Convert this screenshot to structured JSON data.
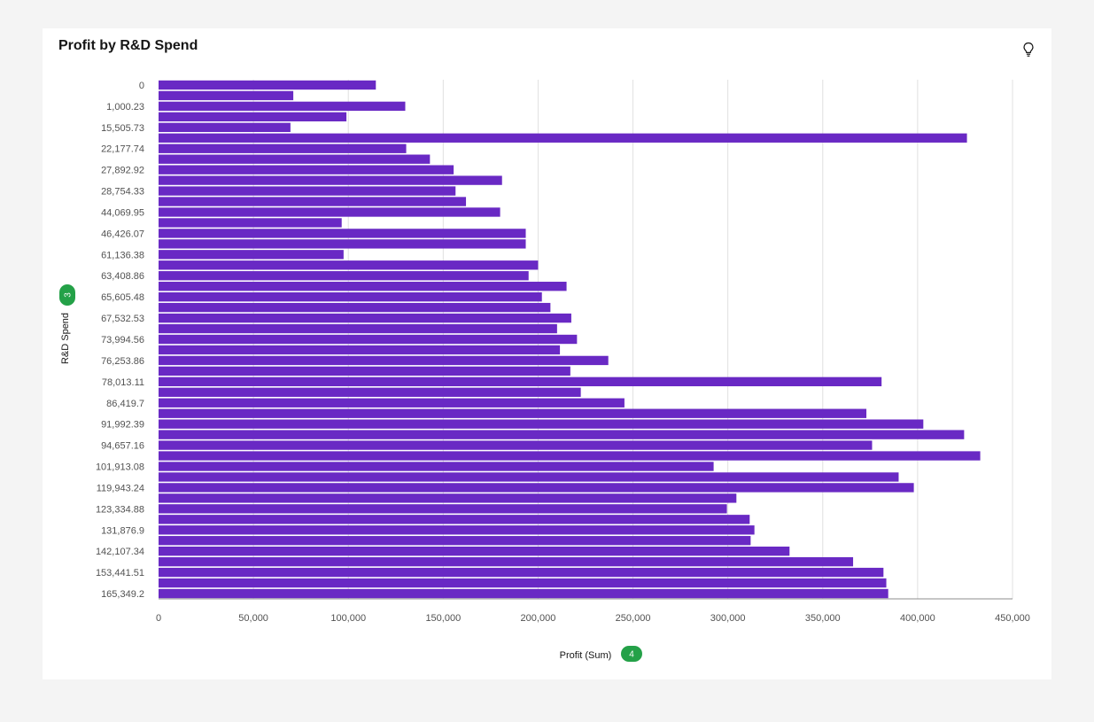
{
  "header": {
    "title": "Profit by R&D Spend",
    "insight_icon": "lightbulb-icon"
  },
  "colors": {
    "bar": "#6929c4",
    "grid": "#e0e0e0",
    "axis": "#8d8d8d",
    "badge": "#24a148"
  },
  "chart_data": {
    "type": "bar",
    "orientation": "horizontal",
    "title": "Profit by R&D Spend",
    "xlabel": "Profit (Sum)",
    "ylabel": "R&D Spend",
    "xlim": [
      0,
      450000
    ],
    "x_ticks": [
      "0",
      "50,000",
      "100,000",
      "150,000",
      "200,000",
      "250,000",
      "300,000",
      "350,000",
      "400,000",
      "450,000"
    ],
    "x_tick_values": [
      0,
      50000,
      100000,
      150000,
      200000,
      250000,
      300000,
      350000,
      400000,
      450000
    ],
    "y_badge": "3",
    "x_badge": "4",
    "grid": true,
    "category_labels": [
      "0",
      "1,000.23",
      "15,505.73",
      "22,177.74",
      "27,892.92",
      "28,754.33",
      "44,069.95",
      "46,426.07",
      "61,136.38",
      "63,408.86",
      "65,605.48",
      "67,532.53",
      "73,994.56",
      "76,253.86",
      "78,013.11",
      "86,419.7",
      "91,992.39",
      "94,657.16",
      "101,913.08",
      "119,943.24",
      "123,334.88",
      "131,876.9",
      "142,107.34",
      "153,441.51",
      "165,349.2"
    ],
    "values": [
      114500,
      71000,
      130000,
      99000,
      69500,
      426000,
      130500,
      143000,
      155500,
      181000,
      156500,
      162000,
      180000,
      96500,
      193500,
      193500,
      97500,
      200000,
      195000,
      215000,
      202000,
      206500,
      217500,
      210000,
      220500,
      211500,
      237000,
      217000,
      381000,
      222500,
      245500,
      373000,
      403000,
      424500,
      376000,
      433000,
      292500,
      390000,
      398000,
      304500,
      299500,
      311500,
      314000,
      312000,
      332500,
      366000,
      382000,
      383500,
      384500
    ]
  }
}
